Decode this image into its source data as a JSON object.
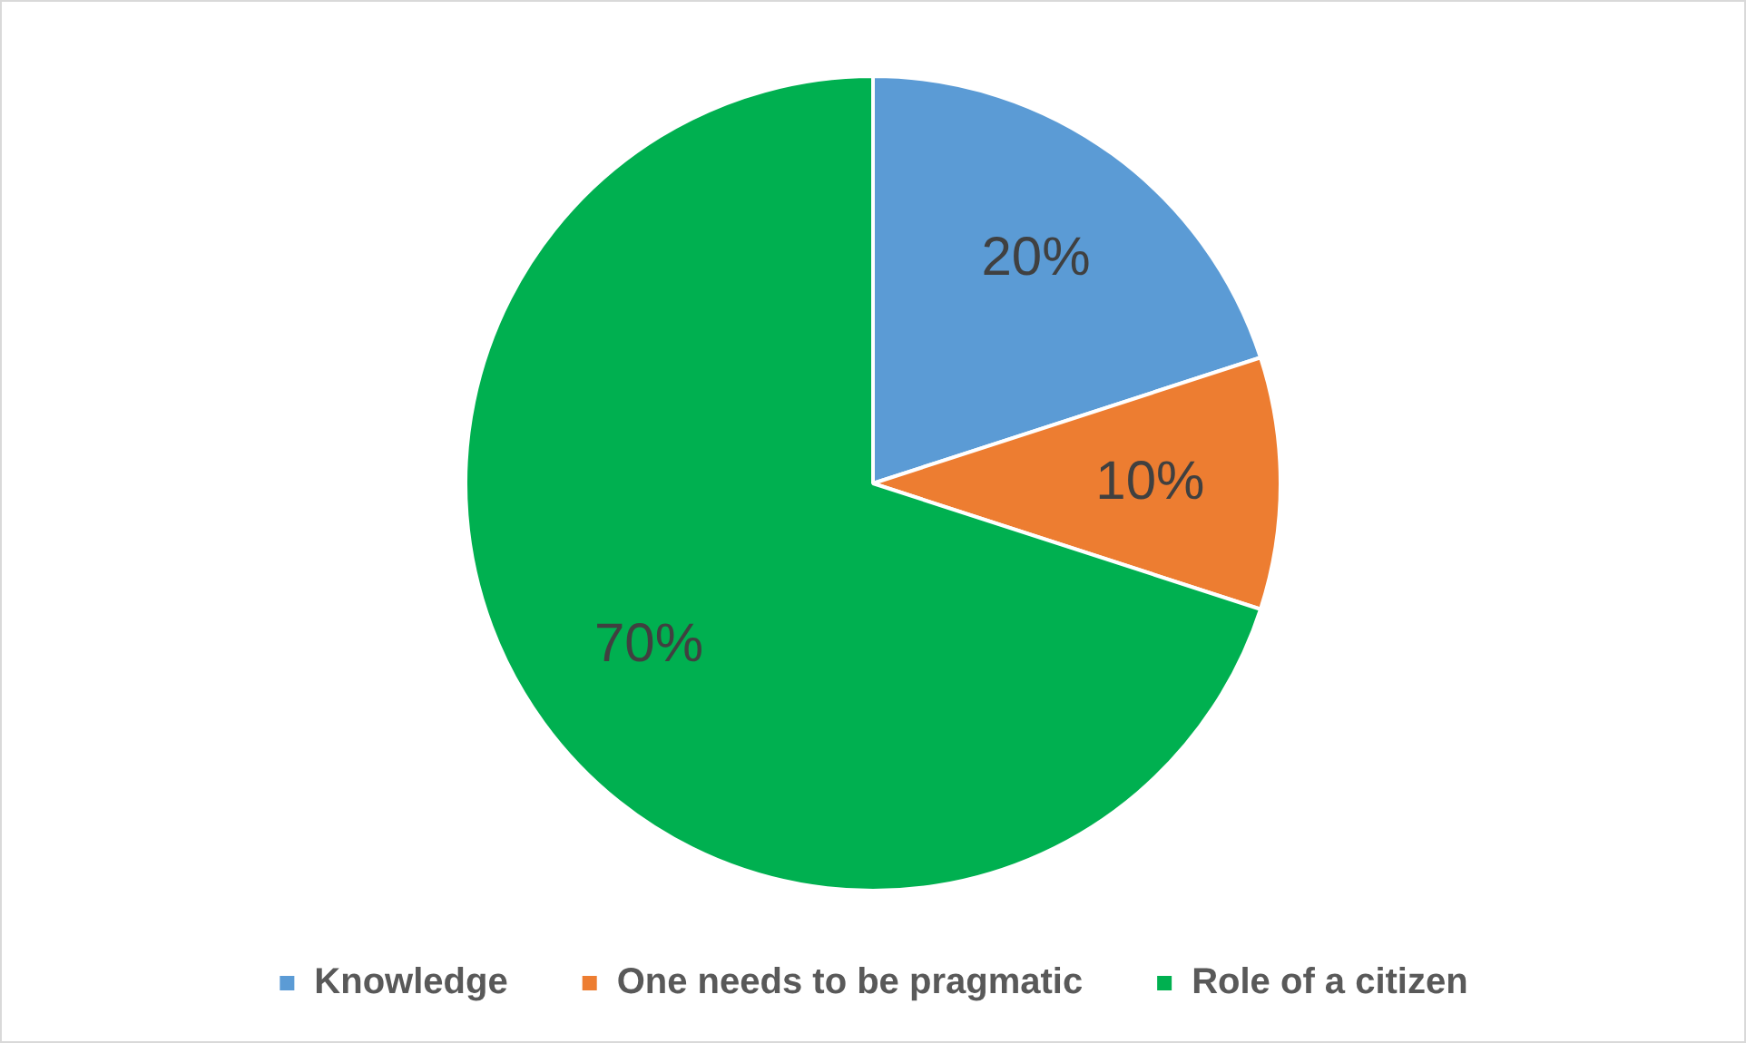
{
  "chart_data": {
    "type": "pie",
    "categories": [
      "Knowledge",
      "One needs to be pragmatic",
      "Role of a citizen"
    ],
    "values": [
      20,
      10,
      70
    ],
    "colors": [
      "#5b9bd5",
      "#ed7d31",
      "#00b050"
    ],
    "value_labels": [
      "20%",
      "10%",
      "70%"
    ],
    "legend": "bottom"
  }
}
